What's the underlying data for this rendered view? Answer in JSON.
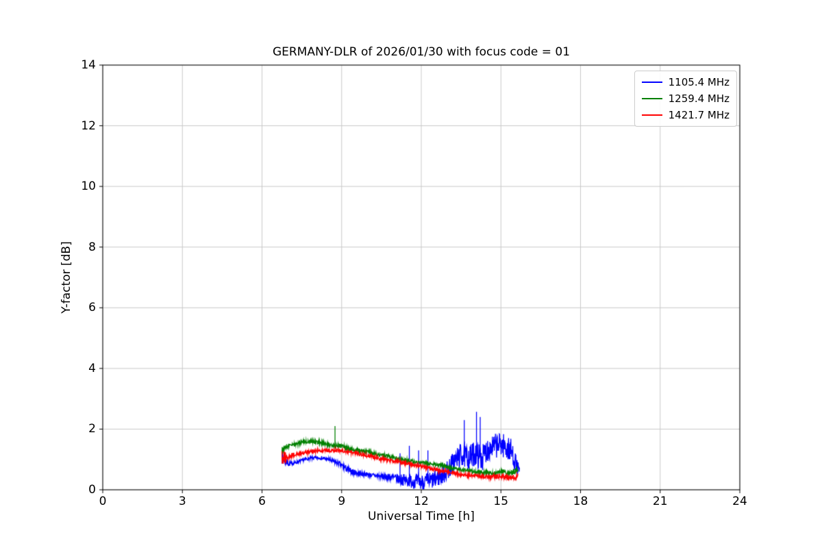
{
  "chart_data": {
    "type": "line",
    "title": "GERMANY-DLR of 2026/01/30 with focus code = 01",
    "xlabel": "Universal Time [h]",
    "ylabel": "Y-factor [dB]",
    "xlim": [
      0,
      24
    ],
    "ylim": [
      0,
      14
    ],
    "xticks": [
      0,
      3,
      6,
      9,
      12,
      15,
      18,
      21,
      24
    ],
    "yticks": [
      0,
      2,
      4,
      6,
      8,
      10,
      12,
      14
    ],
    "grid": true,
    "grid_color": "#c8c8c8",
    "background": "#ffffff",
    "legend_position": "upper right",
    "series": [
      {
        "name": "1105.4 MHz",
        "color": "#0000ff",
        "x": [
          6.75,
          7.0,
          7.3,
          7.6,
          7.9,
          8.2,
          8.5,
          8.8,
          9.0,
          9.3,
          9.6,
          10.0,
          10.4,
          10.8,
          11.0,
          11.5,
          12.0,
          12.5,
          12.8,
          13.0,
          13.2,
          13.5,
          13.8,
          14.0,
          14.3,
          14.5,
          14.8,
          15.0,
          15.2,
          15.4,
          15.6,
          15.7
        ],
        "y": [
          1.1,
          0.85,
          0.9,
          1.0,
          1.05,
          1.05,
          1.0,
          0.9,
          0.8,
          0.62,
          0.55,
          0.5,
          0.45,
          0.42,
          0.38,
          0.3,
          0.25,
          0.33,
          0.5,
          0.65,
          0.9,
          1.15,
          1.05,
          1.2,
          1.05,
          1.35,
          1.45,
          1.5,
          1.4,
          1.25,
          0.8,
          0.6
        ],
        "noise": [
          0.25,
          0.08,
          0.05,
          0.05,
          0.05,
          0.05,
          0.06,
          0.08,
          0.1,
          0.1,
          0.08,
          0.06,
          0.08,
          0.12,
          0.15,
          0.22,
          0.25,
          0.3,
          0.32,
          0.35,
          0.35,
          0.4,
          0.4,
          0.42,
          0.42,
          0.42,
          0.4,
          0.4,
          0.42,
          0.42,
          0.25,
          0.15
        ],
        "spikes": [
          [
            11.2,
            1.2
          ],
          [
            11.55,
            1.45
          ],
          [
            11.9,
            1.3
          ],
          [
            12.25,
            1.3
          ],
          [
            13.62,
            2.3
          ],
          [
            14.08,
            2.57
          ],
          [
            14.22,
            2.4
          ]
        ]
      },
      {
        "name": "1259.4 MHz",
        "color": "#008000",
        "x": [
          6.75,
          7.0,
          7.3,
          7.6,
          7.9,
          8.2,
          8.5,
          8.75,
          9.0,
          9.3,
          9.6,
          10.0,
          10.4,
          10.8,
          11.2,
          11.6,
          12.0,
          12.4,
          12.8,
          13.2,
          13.6,
          14.0,
          14.4,
          14.8,
          15.1,
          15.3,
          15.5,
          15.65
        ],
        "y": [
          1.3,
          1.45,
          1.5,
          1.58,
          1.6,
          1.55,
          1.5,
          1.45,
          1.45,
          1.35,
          1.3,
          1.25,
          1.15,
          1.1,
          1.0,
          0.95,
          0.9,
          0.85,
          0.8,
          0.7,
          0.65,
          0.6,
          0.55,
          0.55,
          0.6,
          0.55,
          0.6,
          0.7
        ],
        "noise": [
          0.12,
          0.07,
          0.06,
          0.06,
          0.06,
          0.06,
          0.06,
          0.06,
          0.06,
          0.06,
          0.06,
          0.06,
          0.06,
          0.06,
          0.06,
          0.06,
          0.06,
          0.06,
          0.06,
          0.06,
          0.06,
          0.06,
          0.06,
          0.06,
          0.08,
          0.08,
          0.1,
          0.1
        ],
        "spikes": [
          [
            8.75,
            2.1
          ]
        ]
      },
      {
        "name": "1421.7 MHz",
        "color": "#ff0000",
        "x": [
          6.75,
          7.0,
          7.4,
          7.8,
          8.2,
          8.6,
          9.0,
          9.4,
          9.8,
          10.2,
          10.6,
          11.0,
          11.4,
          11.8,
          12.2,
          12.6,
          13.0,
          13.4,
          13.8,
          14.2,
          14.6,
          15.0,
          15.3,
          15.5,
          15.65
        ],
        "y": [
          1.05,
          1.1,
          1.2,
          1.25,
          1.3,
          1.3,
          1.28,
          1.22,
          1.15,
          1.08,
          1.0,
          0.95,
          0.88,
          0.8,
          0.72,
          0.65,
          0.6,
          0.52,
          0.48,
          0.45,
          0.42,
          0.45,
          0.4,
          0.42,
          0.45
        ],
        "noise": [
          0.25,
          0.1,
          0.06,
          0.06,
          0.06,
          0.06,
          0.06,
          0.06,
          0.06,
          0.06,
          0.06,
          0.06,
          0.06,
          0.06,
          0.06,
          0.06,
          0.06,
          0.06,
          0.06,
          0.06,
          0.07,
          0.08,
          0.08,
          0.08,
          0.1
        ],
        "spikes": []
      }
    ]
  }
}
